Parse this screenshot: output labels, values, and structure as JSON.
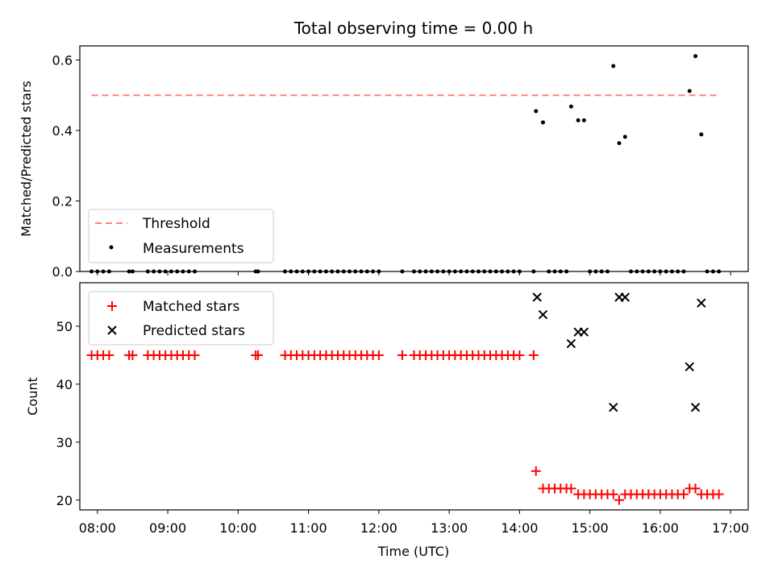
{
  "chart_data": [
    {
      "type": "scatter",
      "title": "Total observing time = 0.00 h",
      "ylabel": "Matched/Predicted stars",
      "xlabel": "",
      "xlim": [
        "07:45",
        "17:15"
      ],
      "ylim": [
        0,
        0.64
      ],
      "yticks": [
        "0.0",
        "0.2",
        "0.4",
        "0.6"
      ],
      "grid": false,
      "legend_position": "lower-left",
      "threshold": {
        "name": "Threshold",
        "value": 0.5,
        "x_range": [
          "07:55",
          "16:50"
        ],
        "color": "#ff8080",
        "style": "dashed"
      },
      "series": [
        {
          "name": "Measurements",
          "color": "#000000",
          "marker": "dot",
          "points": [
            [
              "07:55",
              0
            ],
            [
              "08:00",
              0
            ],
            [
              "08:05",
              0
            ],
            [
              "08:10",
              0
            ],
            [
              "08:27",
              0
            ],
            [
              "08:30",
              0
            ],
            [
              "08:43",
              0
            ],
            [
              "08:48",
              0
            ],
            [
              "08:53",
              0
            ],
            [
              "08:58",
              0
            ],
            [
              "09:03",
              0
            ],
            [
              "09:08",
              0
            ],
            [
              "09:13",
              0
            ],
            [
              "09:18",
              0
            ],
            [
              "09:23",
              0
            ],
            [
              "10:15",
              0
            ],
            [
              "10:17",
              0
            ],
            [
              "10:40",
              0
            ],
            [
              "10:45",
              0
            ],
            [
              "10:50",
              0
            ],
            [
              "10:55",
              0
            ],
            [
              "11:00",
              0
            ],
            [
              "11:05",
              0
            ],
            [
              "11:10",
              0
            ],
            [
              "11:15",
              0
            ],
            [
              "11:20",
              0
            ],
            [
              "11:25",
              0
            ],
            [
              "11:30",
              0
            ],
            [
              "11:35",
              0
            ],
            [
              "11:40",
              0
            ],
            [
              "11:45",
              0
            ],
            [
              "11:50",
              0
            ],
            [
              "11:55",
              0
            ],
            [
              "12:00",
              0
            ],
            [
              "12:20",
              0
            ],
            [
              "12:30",
              0
            ],
            [
              "12:35",
              0
            ],
            [
              "12:40",
              0
            ],
            [
              "12:45",
              0
            ],
            [
              "12:50",
              0
            ],
            [
              "12:55",
              0
            ],
            [
              "13:00",
              0
            ],
            [
              "13:05",
              0
            ],
            [
              "13:10",
              0
            ],
            [
              "13:15",
              0
            ],
            [
              "13:20",
              0
            ],
            [
              "13:25",
              0
            ],
            [
              "13:30",
              0
            ],
            [
              "13:35",
              0
            ],
            [
              "13:40",
              0
            ],
            [
              "13:45",
              0
            ],
            [
              "13:50",
              0
            ],
            [
              "13:55",
              0
            ],
            [
              "14:00",
              0
            ],
            [
              "14:12",
              0
            ],
            [
              "14:14",
              0.455
            ],
            [
              "14:20",
              0.423
            ],
            [
              "14:25",
              0
            ],
            [
              "14:30",
              0
            ],
            [
              "14:35",
              0
            ],
            [
              "14:40",
              0
            ],
            [
              "14:44",
              0.468
            ],
            [
              "14:50",
              0.429
            ],
            [
              "14:55",
              0.429
            ],
            [
              "15:00",
              0
            ],
            [
              "15:05",
              0
            ],
            [
              "15:10",
              0
            ],
            [
              "15:15",
              0
            ],
            [
              "15:20",
              0.583
            ],
            [
              "15:25",
              0.364
            ],
            [
              "15:30",
              0.382
            ],
            [
              "15:35",
              0
            ],
            [
              "15:40",
              0
            ],
            [
              "15:45",
              0
            ],
            [
              "15:50",
              0
            ],
            [
              "15:55",
              0
            ],
            [
              "16:00",
              0
            ],
            [
              "16:05",
              0
            ],
            [
              "16:10",
              0
            ],
            [
              "16:15",
              0
            ],
            [
              "16:20",
              0
            ],
            [
              "16:25",
              0.512
            ],
            [
              "16:30",
              0.611
            ],
            [
              "16:35",
              0.389
            ],
            [
              "16:40",
              0
            ],
            [
              "16:45",
              0
            ],
            [
              "16:50",
              0
            ]
          ]
        }
      ]
    },
    {
      "type": "scatter",
      "title": "",
      "ylabel": "Count",
      "xlabel": "Time (UTC)",
      "xlim": [
        "07:45",
        "17:15"
      ],
      "xticks": [
        "08:00",
        "09:00",
        "10:00",
        "11:00",
        "12:00",
        "13:00",
        "14:00",
        "15:00",
        "16:00",
        "17:00"
      ],
      "ylim": [
        18.3,
        57.5
      ],
      "yticks": [
        "20",
        "30",
        "40",
        "50"
      ],
      "grid": false,
      "legend_position": "upper-left",
      "series": [
        {
          "name": "Matched stars",
          "color": "#ff0000",
          "marker": "plus",
          "points": [
            [
              "07:55",
              45
            ],
            [
              "08:00",
              45
            ],
            [
              "08:05",
              45
            ],
            [
              "08:10",
              45
            ],
            [
              "08:27",
              45
            ],
            [
              "08:30",
              45
            ],
            [
              "08:43",
              45
            ],
            [
              "08:48",
              45
            ],
            [
              "08:53",
              45
            ],
            [
              "08:58",
              45
            ],
            [
              "09:03",
              45
            ],
            [
              "09:08",
              45
            ],
            [
              "09:13",
              45
            ],
            [
              "09:18",
              45
            ],
            [
              "09:23",
              45
            ],
            [
              "10:15",
              45
            ],
            [
              "10:17",
              45
            ],
            [
              "10:40",
              45
            ],
            [
              "10:45",
              45
            ],
            [
              "10:50",
              45
            ],
            [
              "10:55",
              45
            ],
            [
              "11:00",
              45
            ],
            [
              "11:05",
              45
            ],
            [
              "11:10",
              45
            ],
            [
              "11:15",
              45
            ],
            [
              "11:20",
              45
            ],
            [
              "11:25",
              45
            ],
            [
              "11:30",
              45
            ],
            [
              "11:35",
              45
            ],
            [
              "11:40",
              45
            ],
            [
              "11:45",
              45
            ],
            [
              "11:50",
              45
            ],
            [
              "11:55",
              45
            ],
            [
              "12:00",
              45
            ],
            [
              "12:20",
              45
            ],
            [
              "12:30",
              45
            ],
            [
              "12:35",
              45
            ],
            [
              "12:40",
              45
            ],
            [
              "12:45",
              45
            ],
            [
              "12:50",
              45
            ],
            [
              "12:55",
              45
            ],
            [
              "13:00",
              45
            ],
            [
              "13:05",
              45
            ],
            [
              "13:10",
              45
            ],
            [
              "13:15",
              45
            ],
            [
              "13:20",
              45
            ],
            [
              "13:25",
              45
            ],
            [
              "13:30",
              45
            ],
            [
              "13:35",
              45
            ],
            [
              "13:40",
              45
            ],
            [
              "13:45",
              45
            ],
            [
              "13:50",
              45
            ],
            [
              "13:55",
              45
            ],
            [
              "14:00",
              45
            ],
            [
              "14:12",
              45
            ],
            [
              "14:14",
              25
            ],
            [
              "14:20",
              22
            ],
            [
              "14:25",
              22
            ],
            [
              "14:30",
              22
            ],
            [
              "14:35",
              22
            ],
            [
              "14:40",
              22
            ],
            [
              "14:44",
              22
            ],
            [
              "14:50",
              21
            ],
            [
              "14:55",
              21
            ],
            [
              "15:00",
              21
            ],
            [
              "15:05",
              21
            ],
            [
              "15:10",
              21
            ],
            [
              "15:15",
              21
            ],
            [
              "15:20",
              21
            ],
            [
              "15:25",
              20
            ],
            [
              "15:30",
              21
            ],
            [
              "15:35",
              21
            ],
            [
              "15:40",
              21
            ],
            [
              "15:45",
              21
            ],
            [
              "15:50",
              21
            ],
            [
              "15:55",
              21
            ],
            [
              "16:00",
              21
            ],
            [
              "16:05",
              21
            ],
            [
              "16:10",
              21
            ],
            [
              "16:15",
              21
            ],
            [
              "16:20",
              21
            ],
            [
              "16:25",
              22
            ],
            [
              "16:30",
              22
            ],
            [
              "16:35",
              21
            ],
            [
              "16:40",
              21
            ],
            [
              "16:45",
              21
            ],
            [
              "16:50",
              21
            ]
          ]
        },
        {
          "name": "Predicted stars",
          "color": "#000000",
          "marker": "x",
          "points": [
            [
              "14:15",
              55
            ],
            [
              "14:20",
              52
            ],
            [
              "14:44",
              47
            ],
            [
              "14:50",
              49
            ],
            [
              "14:55",
              49
            ],
            [
              "15:20",
              36
            ],
            [
              "15:25",
              55
            ],
            [
              "15:30",
              55
            ],
            [
              "16:25",
              43
            ],
            [
              "16:30",
              36
            ],
            [
              "16:35",
              54
            ]
          ]
        }
      ]
    }
  ]
}
